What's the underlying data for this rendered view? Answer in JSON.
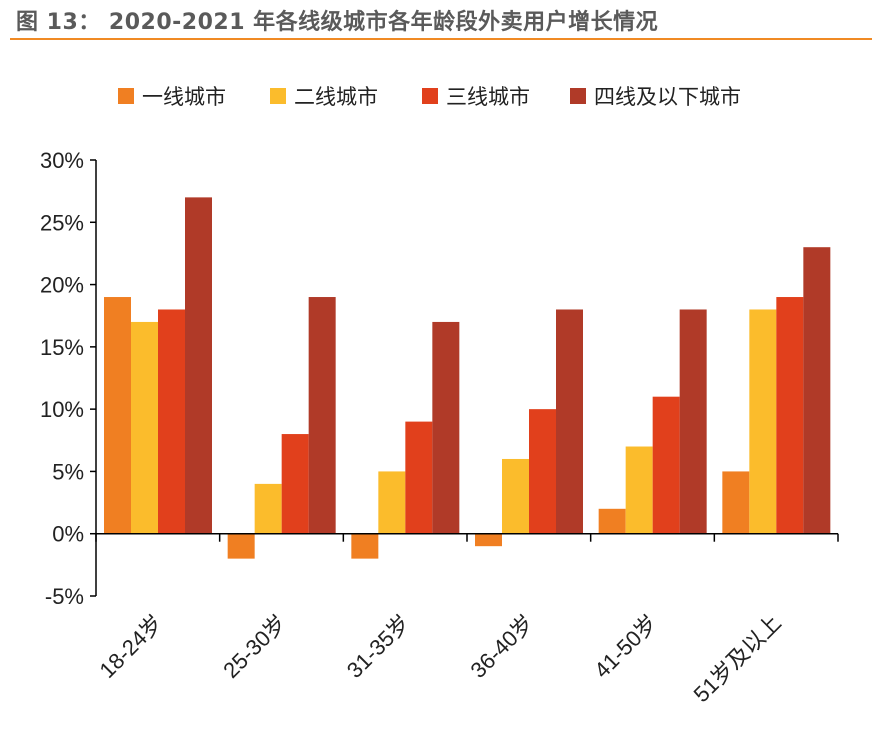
{
  "figure": {
    "title": "图 13： 2020-2021 年各线级城市各年龄段外卖用户增长情况"
  },
  "chart_data": {
    "type": "bar",
    "title": "",
    "xlabel": "",
    "ylabel": "",
    "categories": [
      "18-24岁",
      "25-30岁",
      "31-35岁",
      "36-40岁",
      "41-50岁",
      "51岁及以上"
    ],
    "series": [
      {
        "name": "一线城市",
        "color": "#f07f22",
        "values": [
          0.19,
          -0.02,
          -0.02,
          -0.01,
          0.02,
          0.05
        ]
      },
      {
        "name": "二线城市",
        "color": "#fbbc2c",
        "values": [
          0.17,
          0.04,
          0.05,
          0.06,
          0.07,
          0.18
        ]
      },
      {
        "name": "三线城市",
        "color": "#e1401c",
        "values": [
          0.18,
          0.08,
          0.09,
          0.1,
          0.11,
          0.19
        ]
      },
      {
        "name": "四线及以下城市",
        "color": "#b03a28",
        "values": [
          0.27,
          0.19,
          0.17,
          0.18,
          0.18,
          0.23
        ]
      }
    ],
    "ylim": [
      -0.05,
      0.3
    ],
    "yticks": [
      -0.05,
      0,
      0.05,
      0.1,
      0.15,
      0.2,
      0.25,
      0.3
    ],
    "ytick_labels": [
      "-5%",
      "0%",
      "5%",
      "10%",
      "15%",
      "20%",
      "25%",
      "30%"
    ],
    "grid": false,
    "legend_position": "top"
  }
}
